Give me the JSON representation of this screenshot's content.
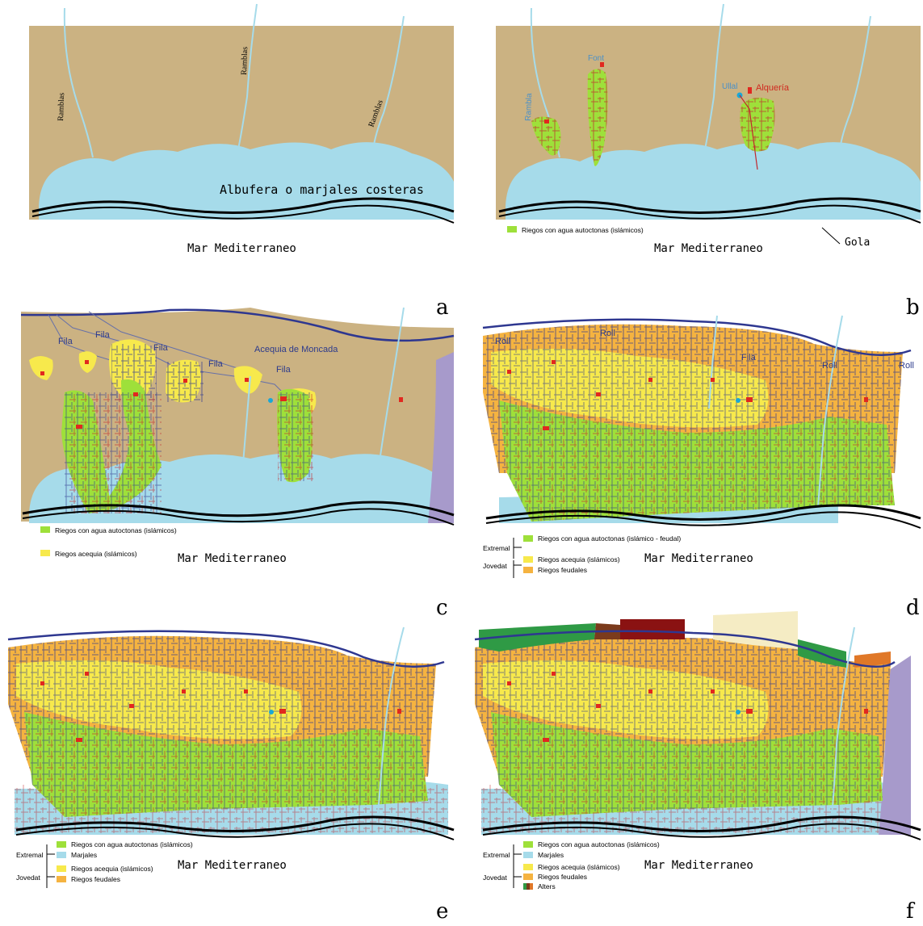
{
  "colors": {
    "land": "#cbb282",
    "water": "#a6dbea",
    "green": "#9ee03a",
    "yellow": "#f7e94c",
    "orange": "#f5b340",
    "violet": "#a79acb",
    "canal_navy": "#2e3790",
    "canal_red": "#c2272d",
    "alqueria": "#e1281f",
    "dark_green": "#2f9a45",
    "brown": "#7b3b1c",
    "maroon": "#8a1212",
    "cream": "#f5ecc4"
  },
  "sea_label": "Mar Mediterraneo",
  "panels": {
    "a": {
      "letter": "a",
      "ramblas": [
        "Ramblas",
        "Ramblas",
        "Ramblas"
      ],
      "albufera_label": "Albufera o marjales costeras"
    },
    "b": {
      "letter": "b",
      "rambla_label": "Rambla",
      "font_label": "Font",
      "ullal_label": "Ullal",
      "alqueria_label": "Alquería",
      "gola_label": "Gola",
      "legend": [
        "Riegos con agua autoctonas (islámicos)"
      ]
    },
    "c": {
      "letter": "c",
      "acequia_label": "Acequia de Moncada",
      "fila_labels": [
        "Fila",
        "Fila",
        "Fila",
        "Fila",
        "Fila"
      ],
      "legend": [
        "Riegos con agua autoctonas (islámicos)",
        "Riegos acequia (islámicos)"
      ]
    },
    "d": {
      "letter": "d",
      "roll_labels": [
        "Roll",
        "Roll",
        "Roll",
        "Roll"
      ],
      "fila_label": "Fila",
      "legend": [
        "Riegos con agua autoctonas (islámico - feudal)",
        "Riegos acequia (islámicos)",
        "Riegos feudales"
      ],
      "groups": [
        "Extremal",
        "Jovedat"
      ]
    },
    "e": {
      "letter": "e",
      "legend": [
        "Riegos con agua autoctonas (islámicos)",
        "Marjales",
        "Riegos acequia (islámicos)",
        "Riegos feudales"
      ],
      "groups": [
        "Extremal",
        "Jovedat"
      ]
    },
    "f": {
      "letter": "f",
      "legend": [
        "Riegos con agua autoctonas (islámicos)",
        "Marjales",
        "Riegos acequia (islámicos)",
        "Riegos feudales",
        "Alters"
      ],
      "groups": [
        "Extremal",
        "Jovedat"
      ]
    }
  }
}
